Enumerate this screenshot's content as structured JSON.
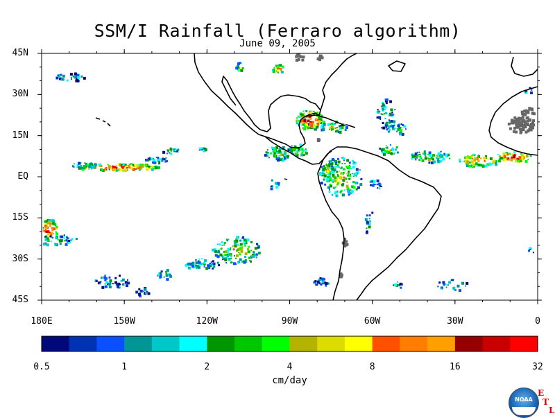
{
  "title": "SSM/I Rainfall (Ferraro algorithm)",
  "date": "June 09, 2005",
  "map": {
    "lon_range": [
      -180,
      0
    ],
    "lat_range": [
      -45,
      45
    ],
    "lat_ticks": [
      {
        "value": 45,
        "label": "45N"
      },
      {
        "value": 30,
        "label": "30N"
      },
      {
        "value": 15,
        "label": "15N"
      },
      {
        "value": 0,
        "label": "EQ"
      },
      {
        "value": -15,
        "label": "15S"
      },
      {
        "value": -30,
        "label": "30S"
      },
      {
        "value": -45,
        "label": "45S"
      }
    ],
    "lon_ticks": [
      {
        "value": -180,
        "label": "180E"
      },
      {
        "value": -150,
        "label": "150W"
      },
      {
        "value": -120,
        "label": "120W"
      },
      {
        "value": -90,
        "label": "90W"
      },
      {
        "value": -60,
        "label": "60W"
      },
      {
        "value": -30,
        "label": "30W"
      },
      {
        "value": 0,
        "label": "0"
      }
    ],
    "no_data_color": "#666666",
    "coastline_color": "#000000"
  },
  "colorbar": {
    "units": "cm/day",
    "colors": [
      "#00087a",
      "#0032b4",
      "#0a50ff",
      "#009696",
      "#00c8c8",
      "#00ffff",
      "#009600",
      "#00c800",
      "#00ff00",
      "#b4b400",
      "#dcdc00",
      "#ffff00",
      "#ff5000",
      "#ff7d00",
      "#ffa000",
      "#960000",
      "#c80000",
      "#ff0000"
    ],
    "tick_labels": [
      "0.5",
      "1",
      "2",
      "4",
      "8",
      "16",
      "32"
    ]
  },
  "logo": {
    "text": "NOAA",
    "etl": [
      "E",
      "T",
      "L"
    ]
  }
}
